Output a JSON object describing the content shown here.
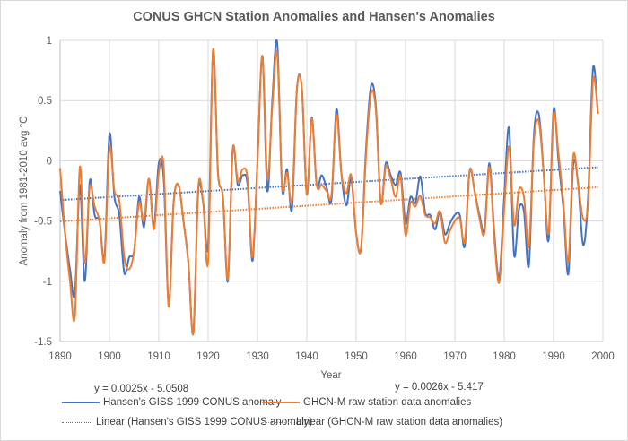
{
  "chart_data": {
    "type": "line",
    "title": "CONUS GHCN Station Anomalies and Hansen's Anomalies",
    "xlabel": "Year",
    "ylabel": "Anomaly from 1981-2010 avg °C",
    "xlim": [
      1890,
      2000
    ],
    "ylim": [
      -1.5,
      1
    ],
    "x_ticks": [
      "1890",
      "1900",
      "1910",
      "1920",
      "1930",
      "1940",
      "1950",
      "1960",
      "1970",
      "1980",
      "1990",
      "2000"
    ],
    "y_ticks": [
      "1",
      "0.5",
      "0",
      "-0.5",
      "-1",
      "-1.5"
    ],
    "y_tick_values": [
      1,
      0.5,
      0,
      -0.5,
      -1,
      -1.5
    ],
    "x_tick_values": [
      1890,
      1900,
      1910,
      1920,
      1930,
      1940,
      1950,
      1960,
      1970,
      1980,
      1990,
      2000
    ],
    "grid": true,
    "legend_position": "bottom",
    "x": [
      1890,
      1891,
      1892,
      1893,
      1894,
      1895,
      1896,
      1897,
      1898,
      1899,
      1900,
      1901,
      1902,
      1903,
      1904,
      1905,
      1906,
      1907,
      1908,
      1909,
      1910,
      1911,
      1912,
      1913,
      1914,
      1915,
      1916,
      1917,
      1918,
      1919,
      1920,
      1921,
      1922,
      1923,
      1924,
      1925,
      1926,
      1927,
      1928,
      1929,
      1930,
      1931,
      1932,
      1933,
      1934,
      1935,
      1936,
      1937,
      1938,
      1939,
      1940,
      1941,
      1942,
      1943,
      1944,
      1945,
      1946,
      1947,
      1948,
      1949,
      1950,
      1951,
      1952,
      1953,
      1954,
      1955,
      1956,
      1957,
      1958,
      1959,
      1960,
      1961,
      1962,
      1963,
      1964,
      1965,
      1966,
      1967,
      1968,
      1969,
      1970,
      1971,
      1972,
      1973,
      1974,
      1975,
      1976,
      1977,
      1978,
      1979,
      1980,
      1981,
      1982,
      1983,
      1984,
      1985,
      1986,
      1987,
      1988,
      1989,
      1990,
      1991,
      1992,
      1993,
      1994,
      1995,
      1996,
      1997,
      1998,
      1999
    ],
    "series": [
      {
        "name": "Hansen's GISS 1999 CONUS anomaly",
        "color": "#4472c4",
        "style": "solid",
        "values": [
          -0.25,
          -0.6,
          -0.9,
          -1.1,
          -0.2,
          -1.0,
          -0.17,
          -0.45,
          -0.5,
          -0.8,
          0.22,
          -0.3,
          -0.45,
          -0.93,
          -0.8,
          -0.75,
          -0.3,
          -0.55,
          -0.15,
          -0.55,
          -0.02,
          -0.15,
          -1.2,
          -0.35,
          -0.2,
          -0.5,
          -0.85,
          -1.43,
          -0.25,
          -0.35,
          -0.7,
          0.92,
          -0.1,
          -0.3,
          -1.0,
          0.1,
          -0.2,
          -0.12,
          -0.2,
          -0.83,
          0.0,
          0.87,
          -0.25,
          0.5,
          0.98,
          -0.23,
          -0.07,
          -0.4,
          0.6,
          0.6,
          -0.28,
          0.36,
          -0.2,
          -0.12,
          -0.22,
          -0.32,
          0.43,
          -0.1,
          -0.37,
          -0.15,
          -0.6,
          -0.72,
          0.1,
          0.62,
          0.45,
          -0.35,
          -0.02,
          -0.12,
          -0.2,
          -0.1,
          -0.52,
          -0.3,
          -0.35,
          -0.13,
          -0.43,
          -0.45,
          -0.57,
          -0.42,
          -0.61,
          -0.52,
          -0.45,
          -0.45,
          -0.71,
          -0.08,
          -0.25,
          -0.45,
          -0.57,
          -0.02,
          -0.6,
          -0.97,
          -0.3,
          0.27,
          -0.78,
          -0.4,
          -0.42,
          -0.87,
          0.2,
          0.39,
          -0.1,
          -0.66,
          0.42,
          0.0,
          -0.4,
          -0.94,
          -0.03,
          -0.2,
          -0.7,
          -0.3,
          0.77,
          0.39
        ]
      },
      {
        "name": "GHCN-M raw station data anomalies",
        "color": "#ed7d31",
        "style": "solid",
        "values": [
          -0.06,
          -0.6,
          -1.0,
          -1.29,
          -0.05,
          -0.85,
          -0.22,
          -0.38,
          -0.5,
          -0.83,
          0.11,
          -0.25,
          -0.33,
          -0.8,
          -0.9,
          -0.75,
          -0.35,
          -0.5,
          -0.15,
          -0.57,
          -0.1,
          -0.05,
          -1.21,
          -0.35,
          -0.2,
          -0.5,
          -0.85,
          -1.43,
          -0.22,
          -0.35,
          -0.83,
          0.92,
          -0.1,
          -0.3,
          -0.98,
          0.1,
          -0.17,
          -0.07,
          -0.15,
          -0.8,
          0.0,
          0.87,
          -0.15,
          0.45,
          0.89,
          -0.2,
          -0.1,
          -0.33,
          0.6,
          0.6,
          -0.28,
          0.35,
          -0.2,
          -0.2,
          -0.25,
          -0.28,
          0.38,
          -0.1,
          -0.27,
          -0.12,
          -0.6,
          -0.73,
          0.05,
          0.56,
          0.42,
          -0.35,
          -0.05,
          -0.15,
          -0.3,
          -0.13,
          -0.62,
          -0.35,
          -0.38,
          -0.29,
          -0.45,
          -0.47,
          -0.52,
          -0.42,
          -0.68,
          -0.58,
          -0.5,
          -0.48,
          -0.67,
          -0.08,
          -0.25,
          -0.48,
          -0.6,
          -0.05,
          -0.65,
          -1.01,
          -0.4,
          0.12,
          -0.53,
          -0.24,
          -0.3,
          -0.71,
          0.15,
          0.33,
          -0.1,
          -0.6,
          0.38,
          0.06,
          -0.35,
          -0.84,
          0.04,
          -0.2,
          -0.48,
          -0.35,
          0.67,
          0.39
        ]
      }
    ],
    "trendlines": [
      {
        "name": "Linear (Hansen's GISS 1999 CONUS anomaly)",
        "color": "#4472c4",
        "style": "dotted",
        "slope": 0.0025,
        "intercept": -5.0508,
        "equation": "y = 0.0025x - 5.0508"
      },
      {
        "name": "Linear (GHCN-M raw station data anomalies)",
        "color": "#ed7d31",
        "style": "dotted",
        "slope": 0.0026,
        "intercept": -5.417,
        "equation": "y = 0.0026x - 5.417"
      }
    ]
  },
  "legend": {
    "items": [
      {
        "label": "Hansen's GISS 1999 CONUS anomaly",
        "color": "#4472c4",
        "style": "solid"
      },
      {
        "label": "GHCN-M raw station data anomalies",
        "color": "#ed7d31",
        "style": "solid"
      },
      {
        "label": "Linear (Hansen's GISS 1999 CONUS anomaly)",
        "color": "#4472c4",
        "style": "dotted"
      },
      {
        "label": "Linear (GHCN-M raw station data anomalies)",
        "color": "#ed7d31",
        "style": "dotted"
      }
    ]
  },
  "colors": {
    "text": "#595959",
    "grid": "#d9d9d9"
  }
}
